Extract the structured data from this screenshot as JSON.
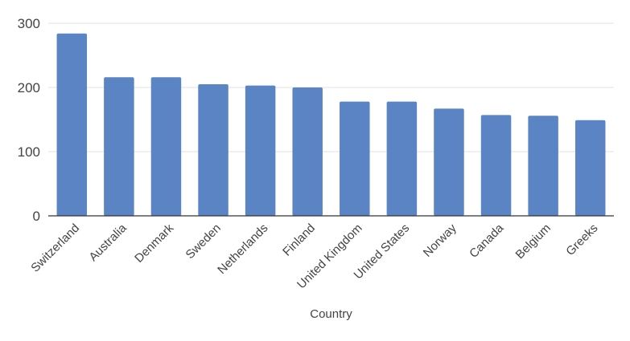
{
  "chart_data": {
    "type": "bar",
    "title": "",
    "xlabel": "Country",
    "ylabel": "",
    "categories": [
      "Switzerland",
      "Australia",
      "Denmark",
      "Sweden",
      "Netherlands",
      "Finland",
      "United Kingdom",
      "United States",
      "Norway",
      "Canada",
      "Belgium",
      "Greeks"
    ],
    "values": [
      284,
      216,
      216,
      205,
      203,
      200,
      178,
      178,
      167,
      157,
      156,
      149
    ],
    "ylim": [
      0,
      300
    ],
    "yticks": [
      "0",
      "100",
      "200",
      "300"
    ],
    "grid": true,
    "legend": "none",
    "color": "#5b84c4"
  }
}
